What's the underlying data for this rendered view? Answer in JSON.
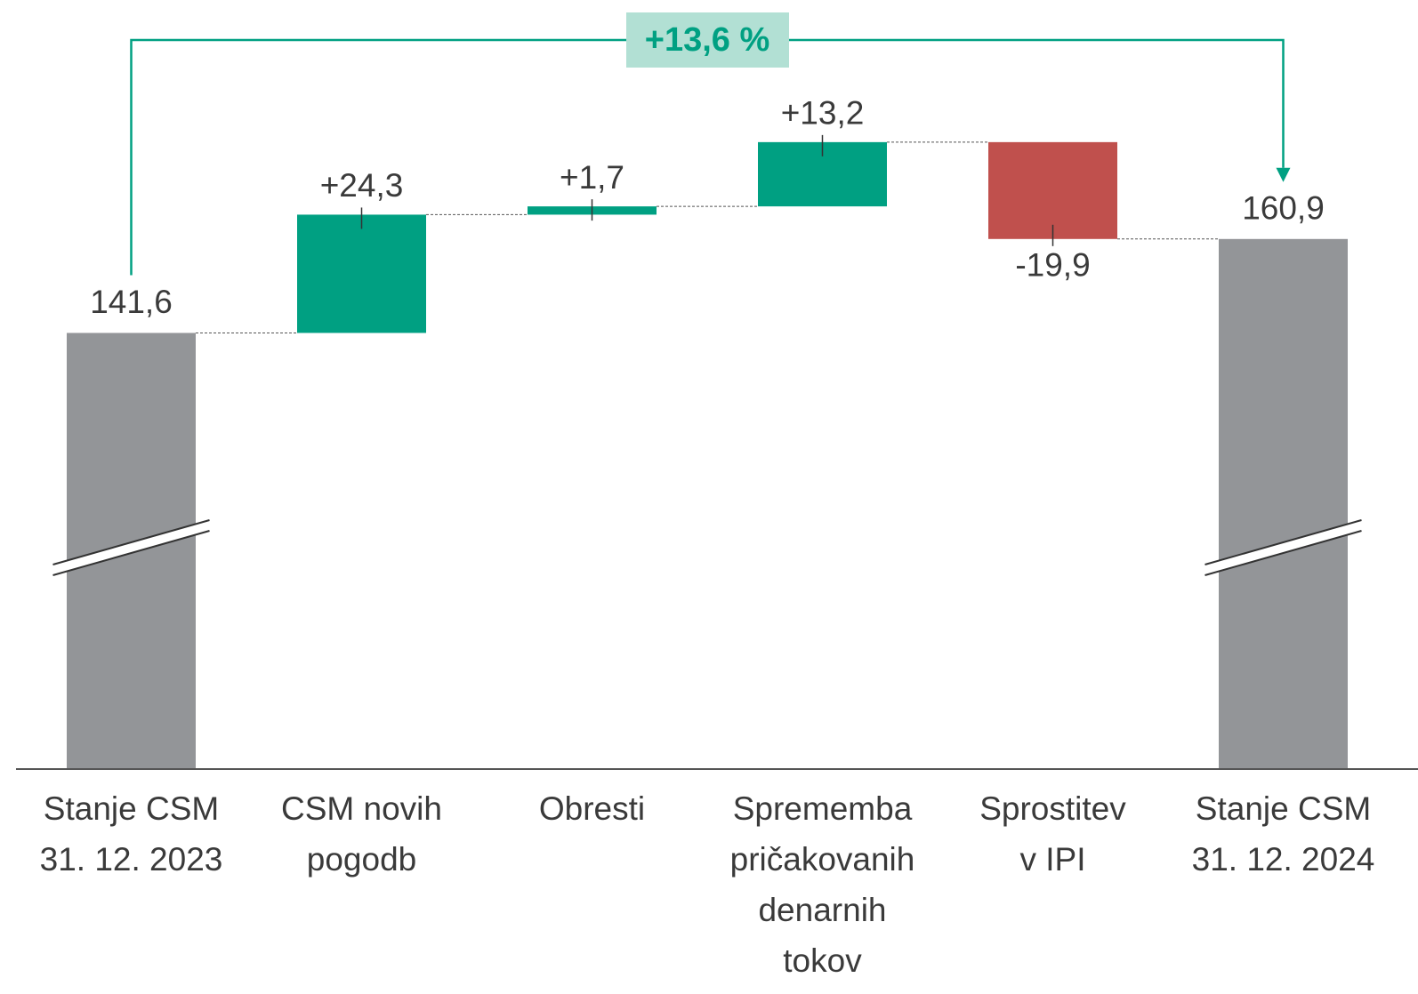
{
  "chart_data": {
    "type": "waterfall",
    "categories": [
      [
        "Stanje CSM",
        "31. 12. 2023"
      ],
      [
        "CSM novih",
        "pogodb"
      ],
      [
        "Obresti"
      ],
      [
        "Sprememba",
        "pričakovanih",
        "denarnih",
        "tokov"
      ],
      [
        "Sprostitev",
        "v IPI"
      ],
      [
        "Stanje CSM",
        "31. 12. 2024"
      ]
    ],
    "values": [
      141.6,
      24.3,
      1.7,
      13.2,
      -19.9,
      160.9
    ],
    "value_labels": [
      "141,6",
      "+24,3",
      "+1,7",
      "+13,2",
      "-19,9",
      "160,9"
    ],
    "measure": [
      "absolute",
      "relative",
      "relative",
      "relative",
      "relative",
      "absolute"
    ],
    "colors": {
      "total": "#939598",
      "increase": "#00a082",
      "decrease": "#c0504d"
    },
    "annotation": "+13,6 %",
    "ylim": [
      52,
      210
    ]
  }
}
